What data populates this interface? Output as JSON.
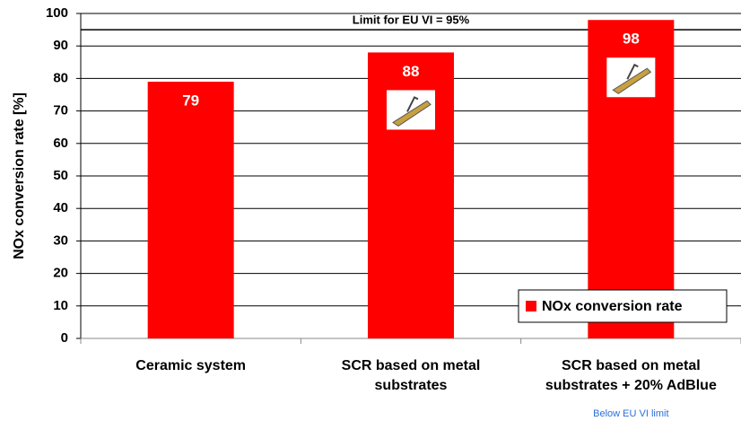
{
  "chart_data": {
    "type": "bar",
    "y_label": "NOx conversion rate [%]",
    "categories": [
      "Ceramic system",
      "SCR based on metal substrates",
      "SCR based on metal substrates + 20% AdBlue"
    ],
    "series": [
      {
        "name": "NOx conversion rate",
        "color": "#ff0000",
        "values": [
          79,
          88,
          98
        ]
      }
    ],
    "ylim": [
      0,
      100
    ],
    "yticks": [
      0,
      10,
      20,
      30,
      40,
      50,
      60,
      70,
      80,
      90,
      100
    ],
    "grid": true,
    "legend": "lower right",
    "reference_line": {
      "value": 95,
      "label": "Limit for EU VI = 95%"
    },
    "annotation": "Below EU VI limit"
  }
}
